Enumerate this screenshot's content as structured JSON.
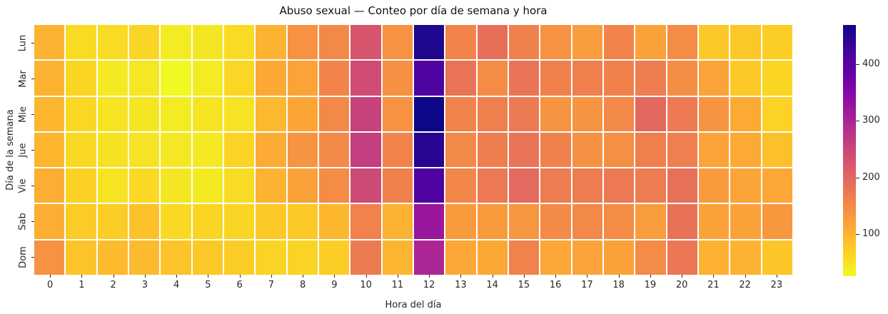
{
  "chart_data": {
    "type": "heatmap",
    "title": "Abuso sexual — Conteo por día de semana y hora",
    "xlabel": "Hora del día",
    "ylabel": "Día de la semana",
    "x_labels": [
      "0",
      "1",
      "2",
      "3",
      "4",
      "5",
      "6",
      "7",
      "8",
      "9",
      "10",
      "11",
      "12",
      "13",
      "14",
      "15",
      "16",
      "17",
      "18",
      "19",
      "20",
      "21",
      "22",
      "23"
    ],
    "y_labels": [
      "Lun",
      "Mar",
      "Mie",
      "Jue",
      "Vie",
      "Sab",
      "Dom"
    ],
    "values": [
      [
        100,
        55,
        55,
        62,
        38,
        45,
        57,
        100,
        140,
        152,
        225,
        140,
        455,
        158,
        188,
        163,
        140,
        127,
        158,
        120,
        148,
        76,
        76,
        70
      ],
      [
        100,
        62,
        42,
        44,
        25,
        38,
        60,
        112,
        118,
        158,
        240,
        141,
        410,
        182,
        148,
        179,
        163,
        165,
        163,
        168,
        146,
        118,
        75,
        62
      ],
      [
        95,
        60,
        47,
        45,
        38,
        47,
        48,
        94,
        115,
        152,
        255,
        140,
        470,
        160,
        165,
        173,
        138,
        138,
        152,
        198,
        172,
        138,
        110,
        65
      ],
      [
        95,
        58,
        50,
        48,
        44,
        42,
        64,
        108,
        138,
        150,
        260,
        158,
        447,
        152,
        167,
        181,
        163,
        142,
        144,
        165,
        166,
        118,
        110,
        85
      ],
      [
        105,
        66,
        47,
        58,
        45,
        41,
        56,
        100,
        120,
        148,
        243,
        163,
        410,
        155,
        175,
        196,
        170,
        170,
        175,
        170,
        186,
        128,
        117,
        113
      ],
      [
        105,
        73,
        72,
        84,
        58,
        62,
        62,
        75,
        74,
        95,
        162,
        101,
        322,
        128,
        129,
        135,
        150,
        152,
        148,
        127,
        184,
        120,
        120,
        132
      ],
      [
        140,
        82,
        92,
        92,
        82,
        76,
        72,
        63,
        63,
        70,
        171,
        97,
        300,
        113,
        112,
        161,
        113,
        118,
        120,
        149,
        177,
        102,
        100,
        78
      ]
    ],
    "vmin": 25,
    "vmax": 470,
    "colorbar_ticks": [
      100,
      200,
      300,
      400
    ],
    "colormap": "plasma_r",
    "colormap_stops": [
      "#0d0887",
      "#41049d",
      "#6a00a8",
      "#8f0da4",
      "#b12a90",
      "#cc4778",
      "#e16462",
      "#f2844b",
      "#fca636",
      "#fcce25",
      "#f0f921"
    ],
    "grid_line_color": "#ffffff",
    "legend_position": "right-colorbar",
    "background_color": "#ffffff",
    "text_color": "#262626"
  }
}
